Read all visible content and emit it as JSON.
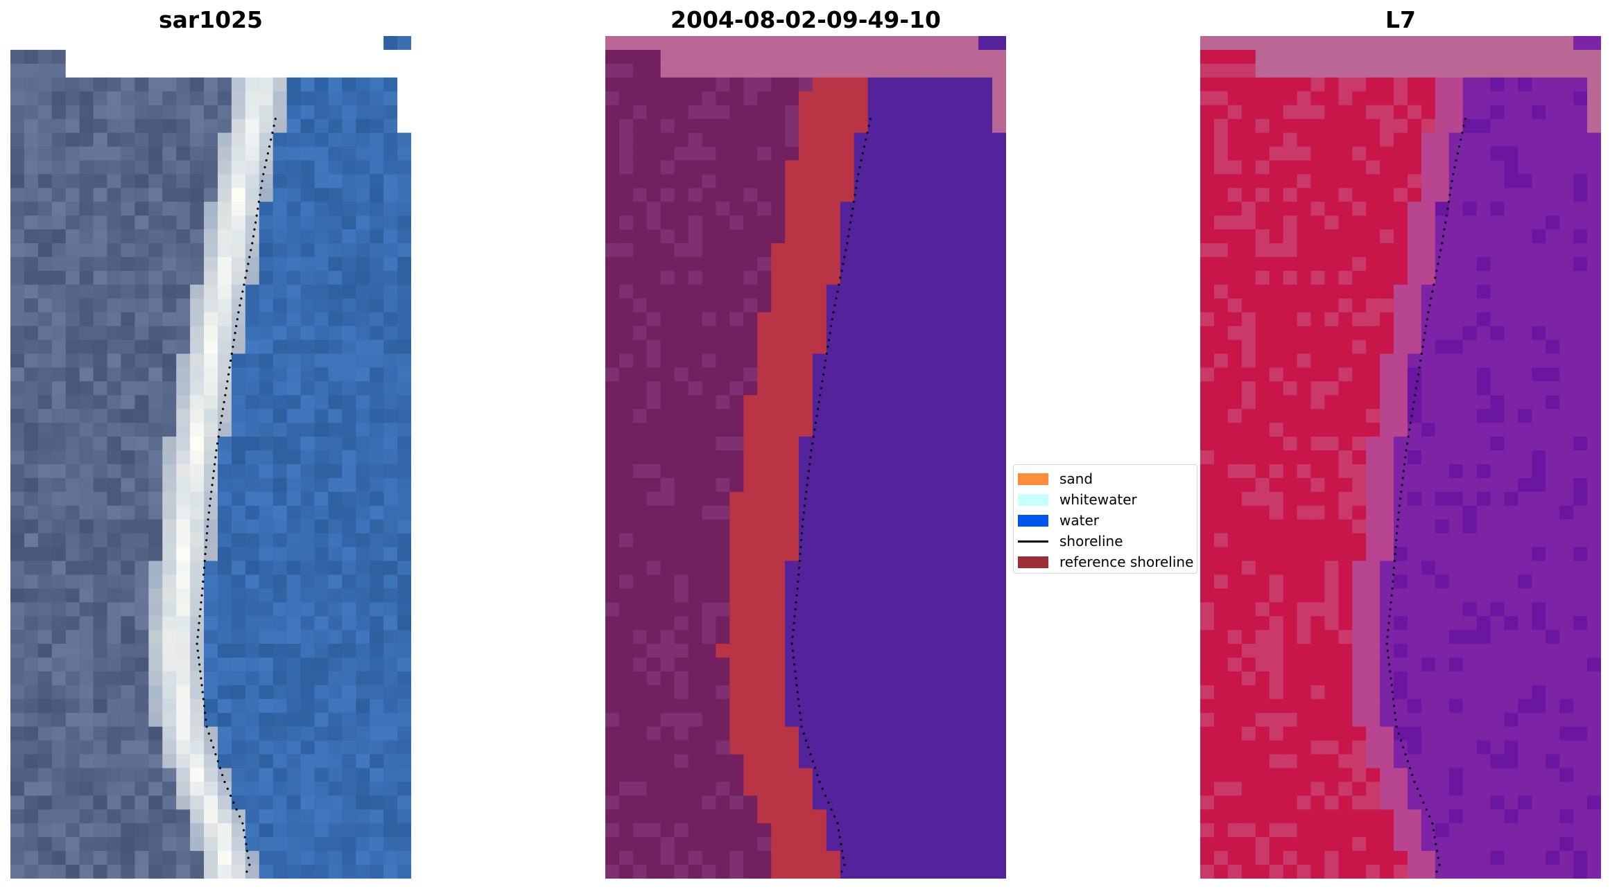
{
  "panels": [
    {
      "title": "sar1025",
      "palette": "rgb"
    },
    {
      "title": "2004-08-02-09-49-10",
      "palette": "class"
    },
    {
      "title": "L7",
      "palette": "falsecolor"
    }
  ],
  "legend": {
    "items": [
      {
        "label": "sand",
        "kind": "patch",
        "color": "#ff8c3a"
      },
      {
        "label": "whitewater",
        "kind": "patch",
        "color": "#c8ffff"
      },
      {
        "label": "water",
        "kind": "patch",
        "color": "#0055ee"
      },
      {
        "label": "shoreline",
        "kind": "line",
        "color": "#000000"
      },
      {
        "label": "reference shoreline",
        "kind": "patch",
        "color": "#9b2f35"
      }
    ]
  },
  "colors": {
    "class_land": "#722060",
    "class_sand": "#b93545",
    "class_water": "#54229a",
    "nodata_rgb": "#ffffff",
    "nodata_overlay": "#bb6795",
    "false_land": "#c8164a",
    "false_water": "#7d24a6"
  }
}
